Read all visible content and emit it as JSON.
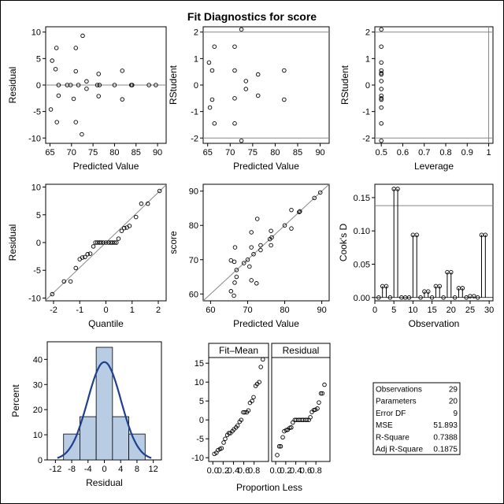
{
  "title": "Fit Diagnostics for score",
  "chart_data": [
    {
      "id": "resid_vs_pred",
      "type": "scatter",
      "xlabel": "Predicted Value",
      "ylabel": "Residual",
      "xlim": [
        64,
        92
      ],
      "ylim": [
        -11,
        11
      ],
      "xticks": [
        65,
        70,
        75,
        80,
        85,
        90
      ],
      "yticks": [
        -10,
        -5,
        0,
        5,
        10
      ],
      "hlines": [
        0
      ],
      "points": [
        [
          65.5,
          4.6
        ],
        [
          65.2,
          -4.6
        ],
        [
          66.5,
          7.0
        ],
        [
          66.3,
          3.0
        ],
        [
          66.6,
          -7.0
        ],
        [
          67.0,
          0.0
        ],
        [
          67.0,
          -2.0
        ],
        [
          69.0,
          0.0
        ],
        [
          69.8,
          0.0
        ],
        [
          71.0,
          7.0
        ],
        [
          71.0,
          2.6
        ],
        [
          70.5,
          -2.6
        ],
        [
          71.0,
          -7.0
        ],
        [
          71.6,
          0.0
        ],
        [
          72.6,
          9.3
        ],
        [
          72.4,
          -9.3
        ],
        [
          73.5,
          0.7
        ],
        [
          73.5,
          -0.7
        ],
        [
          76.0,
          0.0
        ],
        [
          76.3,
          2.1
        ],
        [
          76.3,
          -2.1
        ],
        [
          76.5,
          0.0
        ],
        [
          80.0,
          0.0
        ],
        [
          81.8,
          2.7
        ],
        [
          81.8,
          -2.7
        ],
        [
          83.9,
          0.0
        ],
        [
          84.1,
          0.0
        ],
        [
          88.0,
          0.0
        ],
        [
          89.6,
          0.0
        ]
      ]
    },
    {
      "id": "rstudent_vs_pred",
      "type": "scatter",
      "xlabel": "Predicted Value",
      "ylabel": "RStudent",
      "xlim": [
        64,
        92
      ],
      "ylim": [
        -2.2,
        2.2
      ],
      "xticks": [
        65,
        70,
        75,
        80,
        85,
        90
      ],
      "yticks": [
        -2,
        -1,
        0,
        1,
        2
      ],
      "hlines": [
        2,
        -2
      ],
      "points": [
        [
          72.5,
          2.1
        ],
        [
          72.5,
          -2.1
        ],
        [
          66.5,
          1.45
        ],
        [
          71.0,
          1.45
        ],
        [
          66.5,
          -1.45
        ],
        [
          71.0,
          -1.45
        ],
        [
          65.3,
          0.85
        ],
        [
          65.5,
          -0.85
        ],
        [
          66.0,
          0.55
        ],
        [
          66.0,
          -0.55
        ],
        [
          71.0,
          0.55
        ],
        [
          71.0,
          -0.5
        ],
        [
          73.5,
          0.15
        ],
        [
          73.5,
          -0.15
        ],
        [
          76.2,
          0.4
        ],
        [
          76.2,
          -0.4
        ],
        [
          82.0,
          0.55
        ],
        [
          82.0,
          -0.55
        ]
      ]
    },
    {
      "id": "rstudent_vs_leverage",
      "type": "scatter",
      "xlabel": "Leverage",
      "ylabel": "RStudent",
      "xlim": [
        0.47,
        1.02
      ],
      "ylim": [
        -2.2,
        2.2
      ],
      "xticks": [
        0.5,
        0.6,
        0.7,
        0.8,
        0.9,
        1.0
      ],
      "yticks": [
        -2,
        -1,
        0,
        1,
        2
      ],
      "hlines": [
        2,
        -2
      ],
      "vlines": [
        1.0
      ],
      "points": [
        [
          0.5,
          2.1
        ],
        [
          0.5,
          1.45
        ],
        [
          0.5,
          0.85
        ],
        [
          0.5,
          0.55
        ],
        [
          0.5,
          0.45
        ],
        [
          0.5,
          0.15
        ],
        [
          0.5,
          -0.15
        ],
        [
          0.5,
          -0.4
        ],
        [
          0.5,
          -0.55
        ],
        [
          0.5,
          -0.85
        ],
        [
          0.5,
          -1.45
        ],
        [
          0.5,
          -2.1
        ],
        [
          0.5,
          -0.5
        ],
        [
          0.5,
          0.4
        ]
      ]
    },
    {
      "id": "qq_resid",
      "type": "scatter",
      "xlabel": "Quantile",
      "ylabel": "Residual",
      "xlim": [
        -2.3,
        2.3
      ],
      "ylim": [
        -10.5,
        10.5
      ],
      "xticks": [
        -2,
        -1,
        0,
        1,
        2
      ],
      "yticks": [
        -10,
        -5,
        0,
        5,
        10
      ],
      "refline": [
        [
          -2.3,
          -10.4
        ],
        [
          2.3,
          10.4
        ]
      ],
      "points": [
        [
          -2.05,
          -9.3
        ],
        [
          -1.6,
          -7.0
        ],
        [
          -1.35,
          -7.0
        ],
        [
          -1.15,
          -4.6
        ],
        [
          -1.0,
          -3.0
        ],
        [
          -0.9,
          -2.7
        ],
        [
          -0.8,
          -2.6
        ],
        [
          -0.7,
          -2.1
        ],
        [
          -0.6,
          -2.0
        ],
        [
          -0.48,
          -0.7
        ],
        [
          -0.4,
          0.0
        ],
        [
          -0.33,
          0.0
        ],
        [
          -0.25,
          0.0
        ],
        [
          -0.18,
          0.0
        ],
        [
          -0.1,
          0.0
        ],
        [
          0.0,
          0.0
        ],
        [
          0.1,
          0.0
        ],
        [
          0.18,
          0.0
        ],
        [
          0.25,
          0.0
        ],
        [
          0.33,
          0.0
        ],
        [
          0.4,
          0.0
        ],
        [
          0.48,
          0.7
        ],
        [
          0.6,
          2.1
        ],
        [
          0.7,
          2.6
        ],
        [
          0.8,
          2.7
        ],
        [
          0.9,
          3.0
        ],
        [
          1.15,
          4.6
        ],
        [
          1.35,
          7.0
        ],
        [
          1.6,
          7.0
        ],
        [
          2.05,
          9.3
        ]
      ]
    },
    {
      "id": "score_vs_pred",
      "type": "scatter",
      "xlabel": "Predicted Value",
      "ylabel": "score",
      "xlim": [
        58,
        92
      ],
      "ylim": [
        58,
        92
      ],
      "xticks": [
        60,
        70,
        80,
        90
      ],
      "yticks": [
        60,
        70,
        80,
        90
      ],
      "refline": [
        [
          58,
          58
        ],
        [
          92,
          92
        ]
      ],
      "points": [
        [
          65.5,
          69.8
        ],
        [
          66.4,
          69.4
        ],
        [
          65.5,
          60.8
        ],
        [
          66.3,
          59.5
        ],
        [
          66.5,
          63.3
        ],
        [
          67.0,
          67.0
        ],
        [
          67.0,
          65.0
        ],
        [
          66.6,
          73.6
        ],
        [
          69.0,
          69.0
        ],
        [
          70.0,
          70.0
        ],
        [
          70.5,
          68.0
        ],
        [
          71.0,
          78.0
        ],
        [
          71.0,
          73.6
        ],
        [
          71.0,
          64.0
        ],
        [
          71.6,
          71.6
        ],
        [
          72.4,
          63.1
        ],
        [
          72.6,
          81.9
        ],
        [
          73.5,
          74.2
        ],
        [
          73.5,
          72.8
        ],
        [
          76.0,
          76.0
        ],
        [
          76.3,
          78.4
        ],
        [
          76.5,
          76.5
        ],
        [
          76.3,
          74.2
        ],
        [
          80.0,
          80.0
        ],
        [
          81.8,
          84.5
        ],
        [
          81.8,
          79.1
        ],
        [
          83.9,
          83.9
        ],
        [
          84.1,
          84.1
        ],
        [
          88.0,
          88.0
        ],
        [
          89.6,
          89.6
        ]
      ]
    },
    {
      "id": "cooks_d",
      "type": "bar",
      "xlabel": "Observation",
      "ylabel": "Cook's D",
      "xlim": [
        0,
        31
      ],
      "ylim": [
        -0.005,
        0.17
      ],
      "xticks": [
        0,
        5,
        10,
        15,
        20,
        25,
        30
      ],
      "yticks": [
        0.0,
        0.05,
        0.1,
        0.15
      ],
      "ytick_labels": [
        "0.00",
        "0.05",
        "0.10",
        "0.15"
      ],
      "hlines": [
        0.138
      ],
      "points": [
        [
          1,
          0.0
        ],
        [
          2,
          0.017
        ],
        [
          3,
          0.017
        ],
        [
          4,
          0.0
        ],
        [
          5,
          0.163
        ],
        [
          6,
          0.163
        ],
        [
          7,
          0.0
        ],
        [
          8,
          0.0
        ],
        [
          9,
          0.0
        ],
        [
          10,
          0.094
        ],
        [
          11,
          0.094
        ],
        [
          12,
          0.0
        ],
        [
          13,
          0.009
        ],
        [
          14,
          0.009
        ],
        [
          15,
          0.0
        ],
        [
          16,
          0.017
        ],
        [
          17,
          0.017
        ],
        [
          18,
          0.0
        ],
        [
          19,
          0.038
        ],
        [
          20,
          0.038
        ],
        [
          21,
          0.0
        ],
        [
          22,
          0.014
        ],
        [
          23,
          0.014
        ],
        [
          24,
          0.0
        ],
        [
          25,
          0.002
        ],
        [
          26,
          0.002
        ],
        [
          27,
          0.0
        ],
        [
          28,
          0.094
        ],
        [
          29,
          0.094
        ]
      ]
    },
    {
      "id": "resid_hist",
      "type": "bar",
      "xlabel": "Residual",
      "ylabel": "Percent",
      "xlim": [
        -14,
        14
      ],
      "ylim": [
        0,
        47
      ],
      "xticks": [
        -12,
        -8,
        -4,
        0,
        4,
        8,
        12
      ],
      "yticks": [
        0,
        10,
        20,
        30,
        40
      ],
      "bin_edges": [
        -10,
        -6,
        -2,
        2,
        6,
        10
      ],
      "values": [
        10.3,
        17.2,
        44.8,
        17.2,
        10.3
      ],
      "density_curve": "normal",
      "mean": 0,
      "sd": 4.1
    },
    {
      "id": "rf_spread",
      "type": "scatter",
      "xlabel": "Proportion Less",
      "panels": [
        "Fit–Mean",
        "Residual"
      ],
      "xlim": [
        -0.08,
        1.08
      ],
      "ylim": [
        -11,
        16.5
      ],
      "xticks": [
        0.0,
        0.4,
        0.8
      ],
      "xtick_labels": [
        "0.0",
        "0.4",
        "0.8"
      ],
      "xticks_minor": [
        0.2,
        0.6
      ],
      "xtick_minor_labels": [
        "0.2",
        "0.6"
      ],
      "yticks": [
        -10,
        -5,
        0,
        5,
        10,
        15
      ],
      "fit_minus_mean": [
        [
          0.03,
          -9.0
        ],
        [
          0.07,
          -8.7
        ],
        [
          0.1,
          -8.0
        ],
        [
          0.14,
          -7.7
        ],
        [
          0.17,
          -7.5
        ],
        [
          0.21,
          -6.0
        ],
        [
          0.24,
          -5.0
        ],
        [
          0.28,
          -4.0
        ],
        [
          0.31,
          -3.5
        ],
        [
          0.34,
          -3.5
        ],
        [
          0.38,
          -3.0
        ],
        [
          0.41,
          -2.5
        ],
        [
          0.45,
          -2.0
        ],
        [
          0.48,
          -1.5
        ],
        [
          0.52,
          -0.5
        ],
        [
          0.55,
          0.0
        ],
        [
          0.59,
          2.0
        ],
        [
          0.62,
          2.0
        ],
        [
          0.66,
          2.0
        ],
        [
          0.69,
          2.5
        ],
        [
          0.72,
          4.5
        ],
        [
          0.76,
          5.0
        ],
        [
          0.79,
          6.0
        ],
        [
          0.83,
          9.0
        ],
        [
          0.86,
          9.5
        ],
        [
          0.9,
          10.0
        ],
        [
          0.93,
          14.0
        ],
        [
          0.97,
          16.0
        ]
      ],
      "residual": [
        [
          0.03,
          -9.3
        ],
        [
          0.07,
          -7.0
        ],
        [
          0.1,
          -7.0
        ],
        [
          0.14,
          -4.6
        ],
        [
          0.17,
          -3.0
        ],
        [
          0.21,
          -2.7
        ],
        [
          0.24,
          -2.6
        ],
        [
          0.28,
          -2.1
        ],
        [
          0.31,
          -2.0
        ],
        [
          0.34,
          -0.7
        ],
        [
          0.38,
          0.0
        ],
        [
          0.41,
          0.0
        ],
        [
          0.45,
          0.0
        ],
        [
          0.48,
          0.0
        ],
        [
          0.52,
          0.0
        ],
        [
          0.55,
          0.0
        ],
        [
          0.59,
          0.0
        ],
        [
          0.62,
          0.0
        ],
        [
          0.66,
          0.0
        ],
        [
          0.69,
          0.7
        ],
        [
          0.72,
          2.1
        ],
        [
          0.76,
          2.6
        ],
        [
          0.79,
          2.7
        ],
        [
          0.83,
          3.0
        ],
        [
          0.86,
          4.6
        ],
        [
          0.9,
          7.0
        ],
        [
          0.93,
          7.0
        ],
        [
          0.97,
          9.3
        ]
      ]
    },
    {
      "id": "fit_stats",
      "type": "table",
      "rows": [
        {
          "label": "Observations",
          "value": "29"
        },
        {
          "label": "Parameters",
          "value": "20"
        },
        {
          "label": "Error DF",
          "value": "9"
        },
        {
          "label": "MSE",
          "value": "51.893"
        },
        {
          "label": "R-Square",
          "value": "0.7388"
        },
        {
          "label": "Adj R-Square",
          "value": "0.1875"
        }
      ]
    }
  ]
}
